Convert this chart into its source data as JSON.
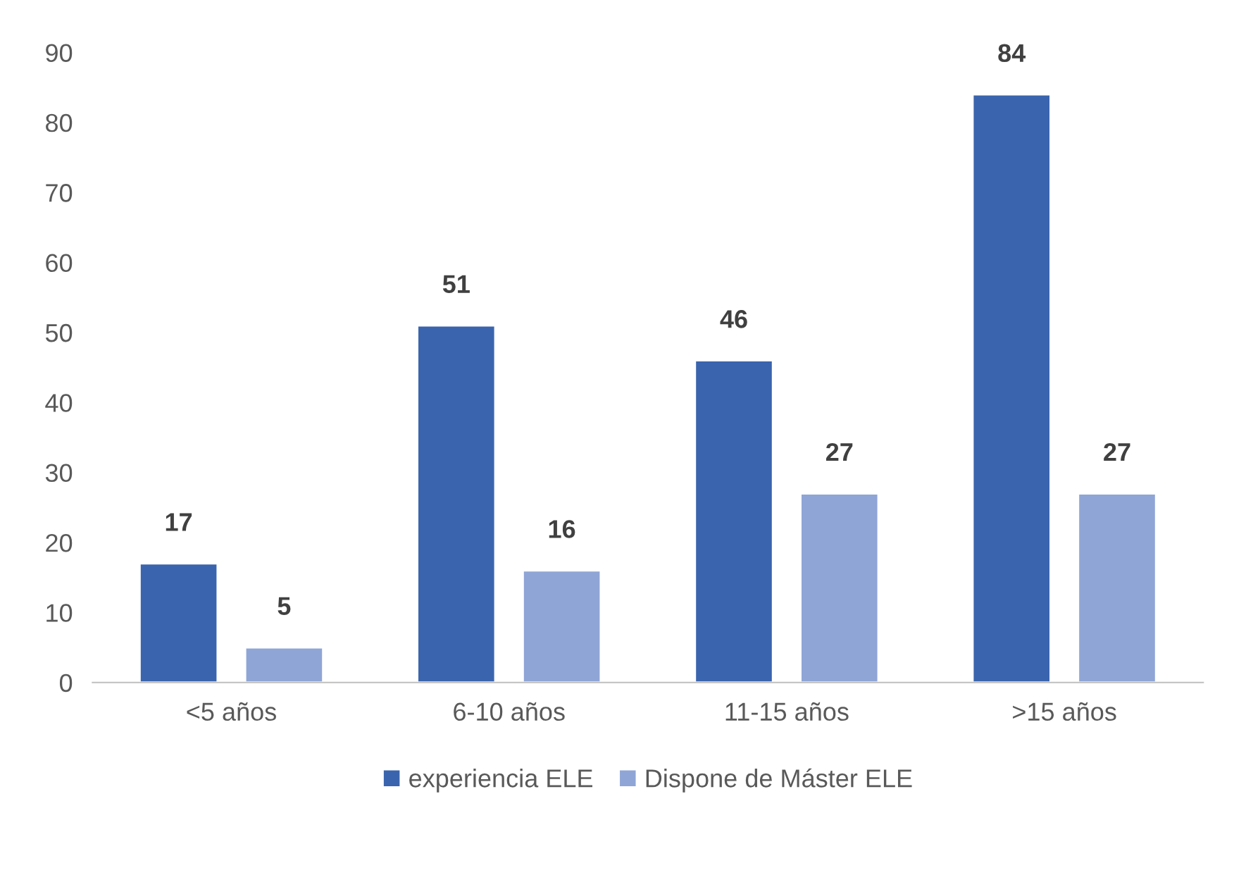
{
  "chart_data": {
    "type": "bar",
    "categories": [
      "<5 años",
      "6-10 años",
      "11-15 años",
      ">15 años"
    ],
    "series": [
      {
        "name": "experiencia ELE",
        "color": "#3a64ae",
        "values": [
          17,
          51,
          46,
          84
        ]
      },
      {
        "name": "Dispone de Máster ELE",
        "color": "#8fa5d6",
        "values": [
          5,
          16,
          27,
          27
        ]
      }
    ],
    "ylim": [
      0,
      90
    ],
    "yticks": [
      0,
      10,
      20,
      30,
      40,
      50,
      60,
      70,
      80,
      90
    ],
    "data_labels": true,
    "grid": false,
    "legend": "bottom"
  }
}
